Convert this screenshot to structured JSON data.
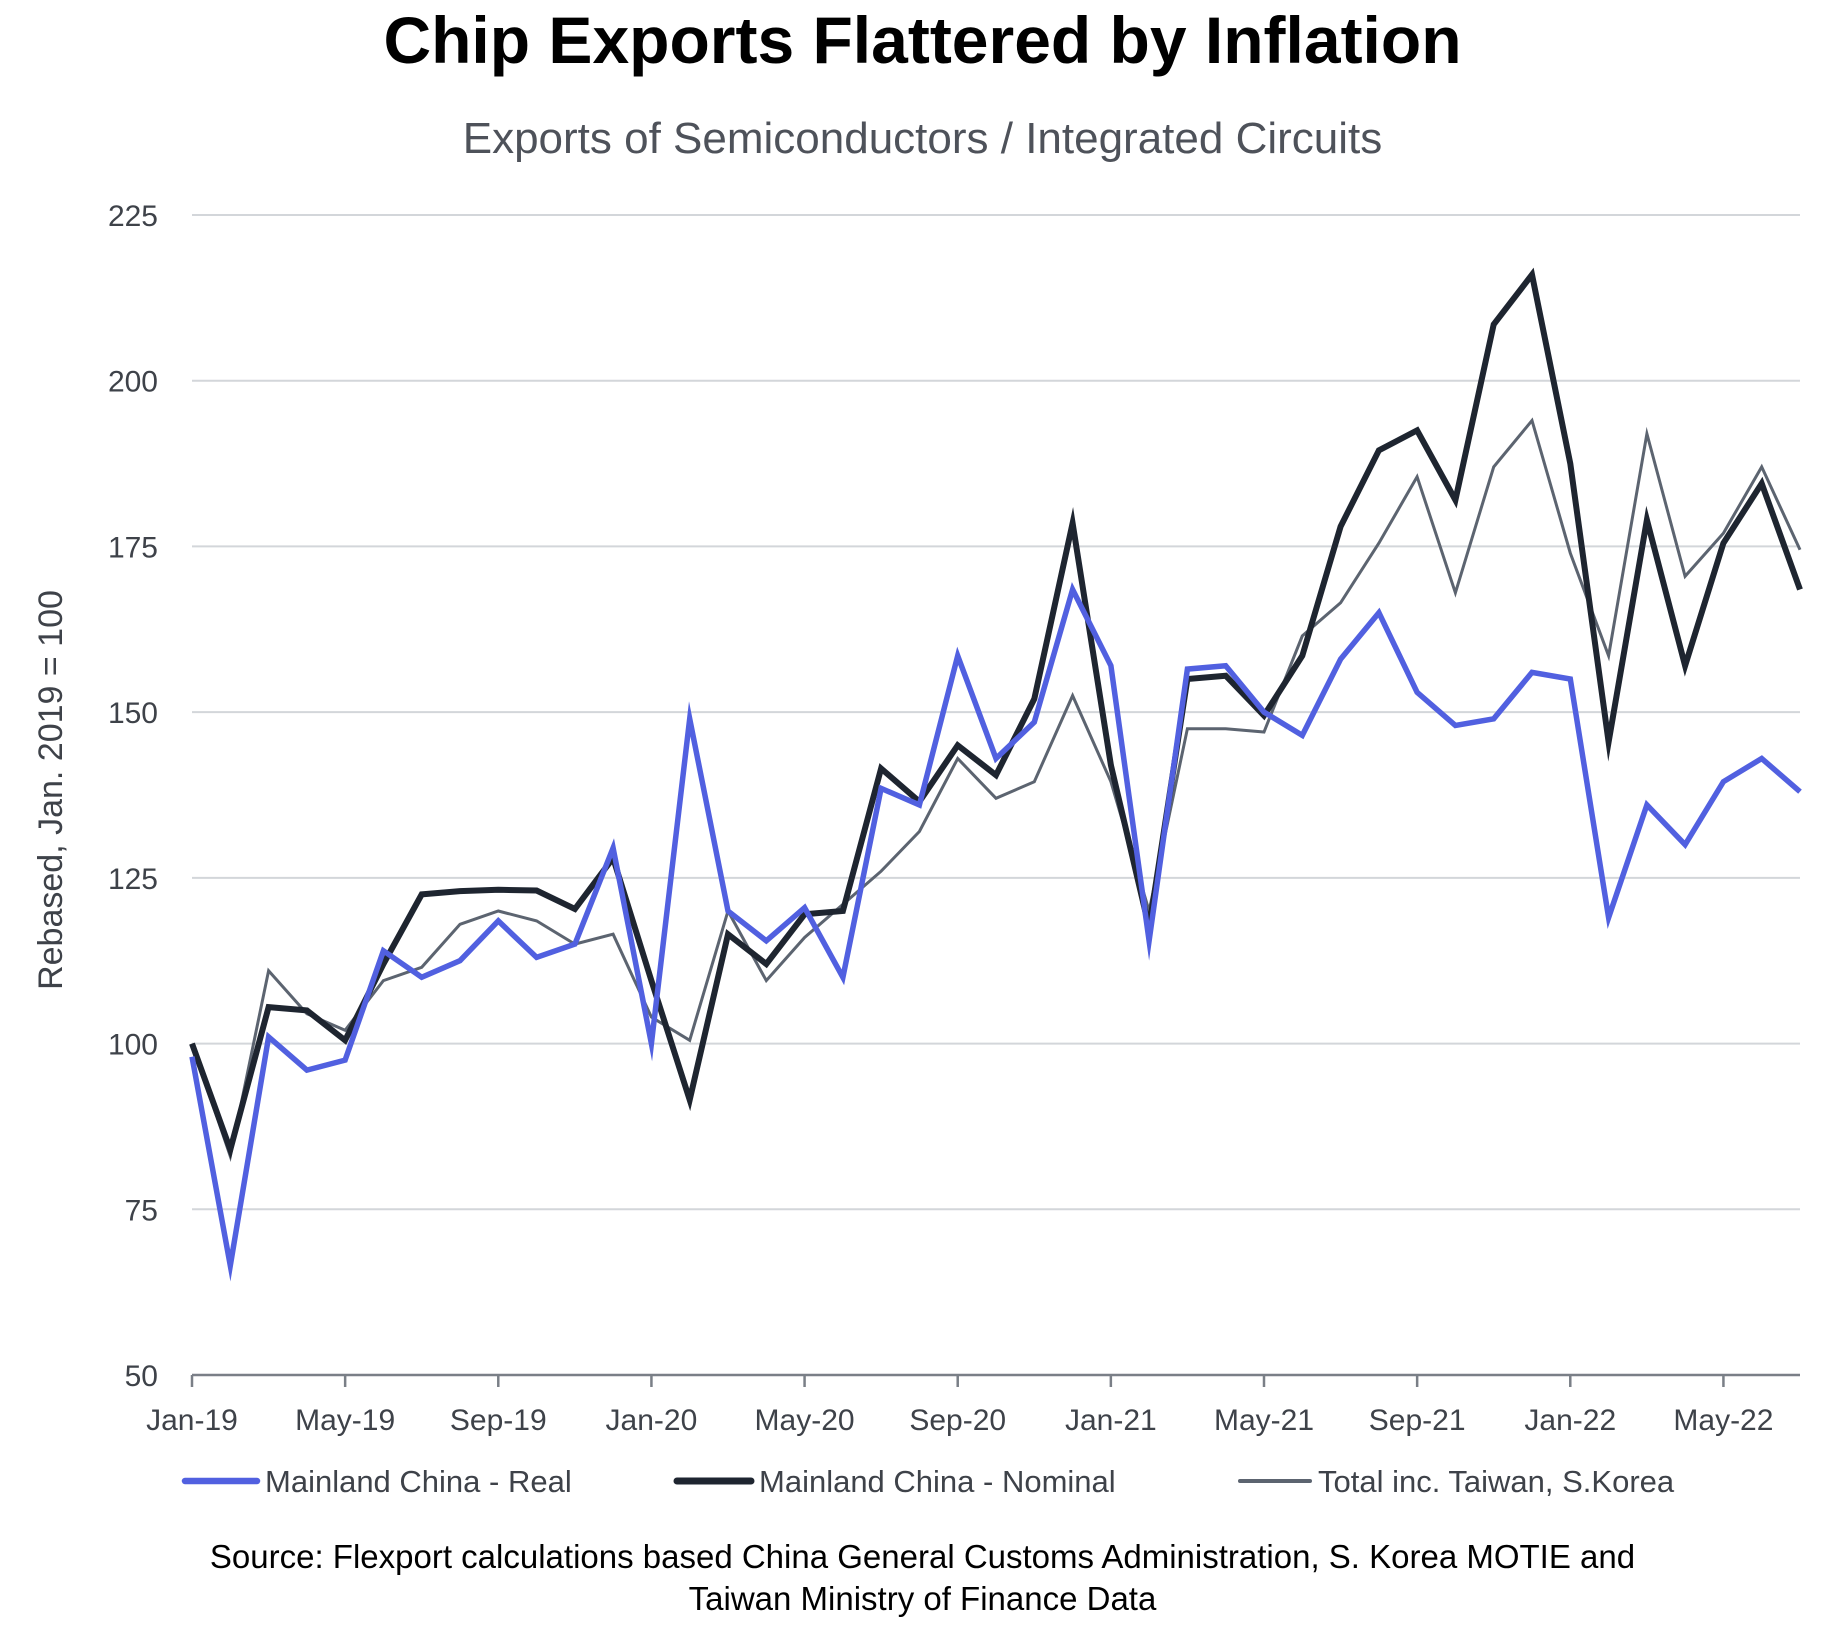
{
  "title": "Chip Exports Flattered by Inflation",
  "subtitle": "Exports of Semiconductors / Integrated Circuits",
  "source_line1": "Source: Flexport calculations based China General Customs Administration, S. Korea MOTIE and",
  "source_line2": "Taiwan Ministry of Finance Data",
  "colors": {
    "real": "#5160e0",
    "nominal": "#1e2530",
    "total": "#5c6470",
    "grid": "#d3d6da",
    "axis": "#7a7f87",
    "text": "#3e4249"
  },
  "chart_data": {
    "type": "line",
    "title": "Chip Exports Flattered by Inflation",
    "subtitle": "Exports of Semiconductors / Integrated Circuits",
    "xlabel": "",
    "ylabel": "Rebased, Jan. 2019 = 100",
    "ylim": [
      50,
      225
    ],
    "yticks": [
      50,
      75,
      100,
      125,
      150,
      175,
      200,
      225
    ],
    "grid": true,
    "legend": "bottom",
    "x": [
      "Jan-19",
      "Feb-19",
      "Mar-19",
      "Apr-19",
      "May-19",
      "Jun-19",
      "Jul-19",
      "Aug-19",
      "Sep-19",
      "Oct-19",
      "Nov-19",
      "Dec-19",
      "Jan-20",
      "Feb-20",
      "Mar-20",
      "Apr-20",
      "May-20",
      "Jun-20",
      "Jul-20",
      "Aug-20",
      "Sep-20",
      "Oct-20",
      "Nov-20",
      "Dec-20",
      "Jan-21",
      "Feb-21",
      "Mar-21",
      "Apr-21",
      "May-21",
      "Jun-21",
      "Jul-21",
      "Aug-21",
      "Sep-21",
      "Oct-21",
      "Nov-21",
      "Dec-21",
      "Jan-22",
      "Feb-22",
      "Mar-22",
      "Apr-22",
      "May-22",
      "Jun-22",
      "Jul-22"
    ],
    "xtick_labels": [
      "Jan-19",
      "May-19",
      "Sep-19",
      "Jan-20",
      "May-20",
      "Sep-20",
      "Jan-21",
      "May-21",
      "Sep-21",
      "Jan-22",
      "May-22"
    ],
    "series": [
      {
        "name": "Mainland China - Real",
        "key": "real",
        "values": [
          98,
          66.5,
          101,
          96,
          97.5,
          114,
          110,
          112.5,
          118.5,
          113,
          115,
          129.5,
          100,
          149,
          120,
          115.5,
          120.5,
          110,
          138.5,
          136,
          158.5,
          143,
          148.5,
          168.5,
          157,
          115.5,
          156.5,
          157,
          150,
          146.5,
          158,
          165,
          153,
          148,
          149,
          156,
          155,
          119,
          136,
          130,
          139.5,
          143,
          138
        ]
      },
      {
        "name": "Mainland China - Nominal",
        "key": "nominal",
        "values": [
          100,
          84,
          105.5,
          105,
          100.5,
          112,
          122.5,
          123,
          123.2,
          123.1,
          120.3,
          128,
          109.5,
          91.5,
          116.5,
          112,
          119.5,
          120,
          141.5,
          136.5,
          145,
          140.5,
          152,
          178.5,
          142,
          117.5,
          155,
          155.5,
          149.5,
          158.5,
          178,
          189.5,
          192.5,
          182,
          208.5,
          216,
          187.5,
          145.5,
          179,
          157,
          175.5,
          184.5,
          168.5
        ]
      },
      {
        "name": "Total inc. Taiwan, S.Korea",
        "key": "total",
        "values": [
          100,
          83,
          111,
          104.5,
          102,
          109.5,
          111.5,
          118,
          120,
          118.5,
          115,
          116.5,
          104,
          100.5,
          120,
          109.5,
          116,
          121,
          126,
          132,
          143,
          137,
          139.5,
          152.5,
          139.5,
          120,
          147.5,
          147.5,
          147,
          161.5,
          166.5,
          175.5,
          185.5,
          168,
          187,
          194,
          174,
          158.5,
          192,
          170.5,
          177,
          187,
          174.5
        ]
      }
    ]
  }
}
